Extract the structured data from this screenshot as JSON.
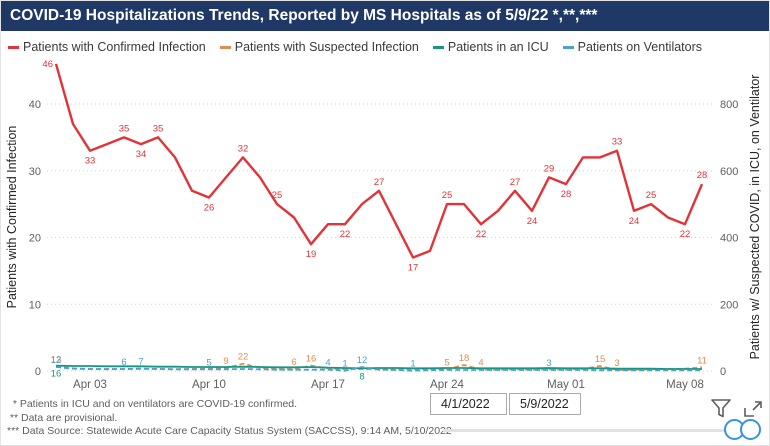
{
  "header": {
    "title": "COVID-19 Hospitalizations Trends, Reported by MS Hospitals as of 5/9/22 *,**,***",
    "bar_color": "#1f3865"
  },
  "chart_data": {
    "type": "line",
    "x": [
      "4/1",
      "4/2",
      "4/3",
      "4/4",
      "4/5",
      "4/6",
      "4/7",
      "4/8",
      "4/9",
      "4/10",
      "4/11",
      "4/12",
      "4/13",
      "4/14",
      "4/15",
      "4/16",
      "4/17",
      "4/18",
      "4/19",
      "4/20",
      "4/21",
      "4/22",
      "4/23",
      "4/24",
      "4/25",
      "4/26",
      "4/27",
      "4/28",
      "4/29",
      "4/30",
      "5/1",
      "5/2",
      "5/3",
      "5/4",
      "5/5",
      "5/6",
      "5/7",
      "5/8",
      "5/9"
    ],
    "x_ticks": [
      {
        "i": 2,
        "label": "Apr 03"
      },
      {
        "i": 9,
        "label": "Apr 10"
      },
      {
        "i": 16,
        "label": "Apr 17"
      },
      {
        "i": 23,
        "label": "Apr 24"
      },
      {
        "i": 30,
        "label": "May 01"
      },
      {
        "i": 37,
        "label": "May 08"
      }
    ],
    "left_axis": {
      "title": "Patients with Confirmed Infection",
      "ticks": [
        0,
        10,
        20,
        30,
        40
      ],
      "max": 47
    },
    "right_axis": {
      "title": "Patients w/ Suspected COVID, in ICU, on Ventilator",
      "ticks": [
        0,
        200,
        400,
        600,
        800
      ],
      "max": 940
    },
    "grid": "dotted-horizontal",
    "legend_position": "top",
    "series": [
      {
        "name": "Patients with Confirmed Infection",
        "axis": "left",
        "color": "#e13338",
        "dash": "solid",
        "width": 2.4,
        "values": [
          46,
          37,
          33,
          34,
          35,
          34,
          35,
          32,
          27,
          26,
          29,
          32,
          29,
          25,
          23,
          19,
          22,
          22,
          25,
          27,
          22,
          17,
          18,
          25,
          25,
          22,
          24,
          27,
          24,
          29,
          28,
          32,
          32,
          33,
          24,
          25,
          23,
          22,
          28
        ],
        "labels": {
          "0": "l",
          "2": "b",
          "4": "a",
          "5": "b",
          "6": "a",
          "9": "b",
          "11": "a",
          "13": "a",
          "15": "b",
          "17": "b",
          "19": "a",
          "21": "b",
          "23": "a",
          "25": "b",
          "27": "a",
          "28": "b",
          "29": "a",
          "30": "b",
          "33": "a",
          "34": "b",
          "35": "a",
          "37": "b",
          "38": "a"
        }
      },
      {
        "name": "Patients with Suspected Infection",
        "axis": "right",
        "color": "#e08d52",
        "dash": "dashed",
        "width": 1.8,
        "values": [
          13,
          8,
          6,
          5,
          6,
          7,
          6,
          5,
          6,
          7,
          9,
          22,
          10,
          6,
          6,
          16,
          8,
          5,
          6,
          5,
          4,
          5,
          6,
          5,
          18,
          4,
          4,
          5,
          4,
          5,
          4,
          6,
          15,
          3,
          4,
          5,
          6,
          7,
          11
        ],
        "labels": {
          "0": "a",
          "10": "a",
          "11": "a",
          "14": "a",
          "15": "a",
          "23": "a",
          "24": "a",
          "25": "a",
          "32": "a",
          "33": "a",
          "38": "a"
        }
      },
      {
        "name": "Patients in an ICU",
        "axis": "right",
        "color": "#17977f",
        "dash": "solid",
        "width": 1.8,
        "values": [
          16,
          15,
          15,
          14,
          14,
          14,
          13,
          13,
          12,
          12,
          12,
          13,
          12,
          11,
          11,
          12,
          10,
          9,
          8,
          9,
          9,
          8,
          8,
          9,
          9,
          8,
          8,
          8,
          8,
          9,
          8,
          8,
          8,
          7,
          7,
          7,
          6,
          6,
          6
        ],
        "labels": {
          "0": "b",
          "18": "b"
        }
      },
      {
        "name": "Patients on Ventilators",
        "axis": "right",
        "color": "#4d9fd2",
        "dash": "dashed",
        "width": 1.8,
        "values": [
          12,
          7,
          6,
          6,
          6,
          7,
          6,
          5,
          5,
          5,
          5,
          6,
          5,
          4,
          4,
          4,
          4,
          1,
          12,
          4,
          3,
          1,
          2,
          3,
          3,
          3,
          3,
          3,
          3,
          3,
          3,
          3,
          2,
          2,
          2,
          2,
          2,
          2,
          2
        ],
        "labels": {
          "0": "a",
          "4": "a",
          "5": "a",
          "9": "a",
          "16": "a",
          "17": "a",
          "18": "a",
          "21": "a",
          "29": "a"
        }
      }
    ]
  },
  "footnotes": [
    "  * Patients in ICU and on ventilators are COVID-19 confirmed.",
    " ** Data are provisional.",
    "*** Data Source: Statewide Acute Care Capacity Status System (SACCSS), 9:14 AM, 5/10/2022"
  ],
  "controls": {
    "start_date": "4/1/2022",
    "end_date": "5/9/2022"
  },
  "icons": {
    "filter": "filter-funnel-icon",
    "expand": "expand-icon",
    "slider_handles": "date-range-slider-handles"
  },
  "style_colors": {
    "gridline": "#d6d6d6",
    "tick_text": "#605e5c",
    "axis_title_text": "#252423",
    "legend_text": "#3b3a39",
    "slider_accent": "#3296d9"
  }
}
